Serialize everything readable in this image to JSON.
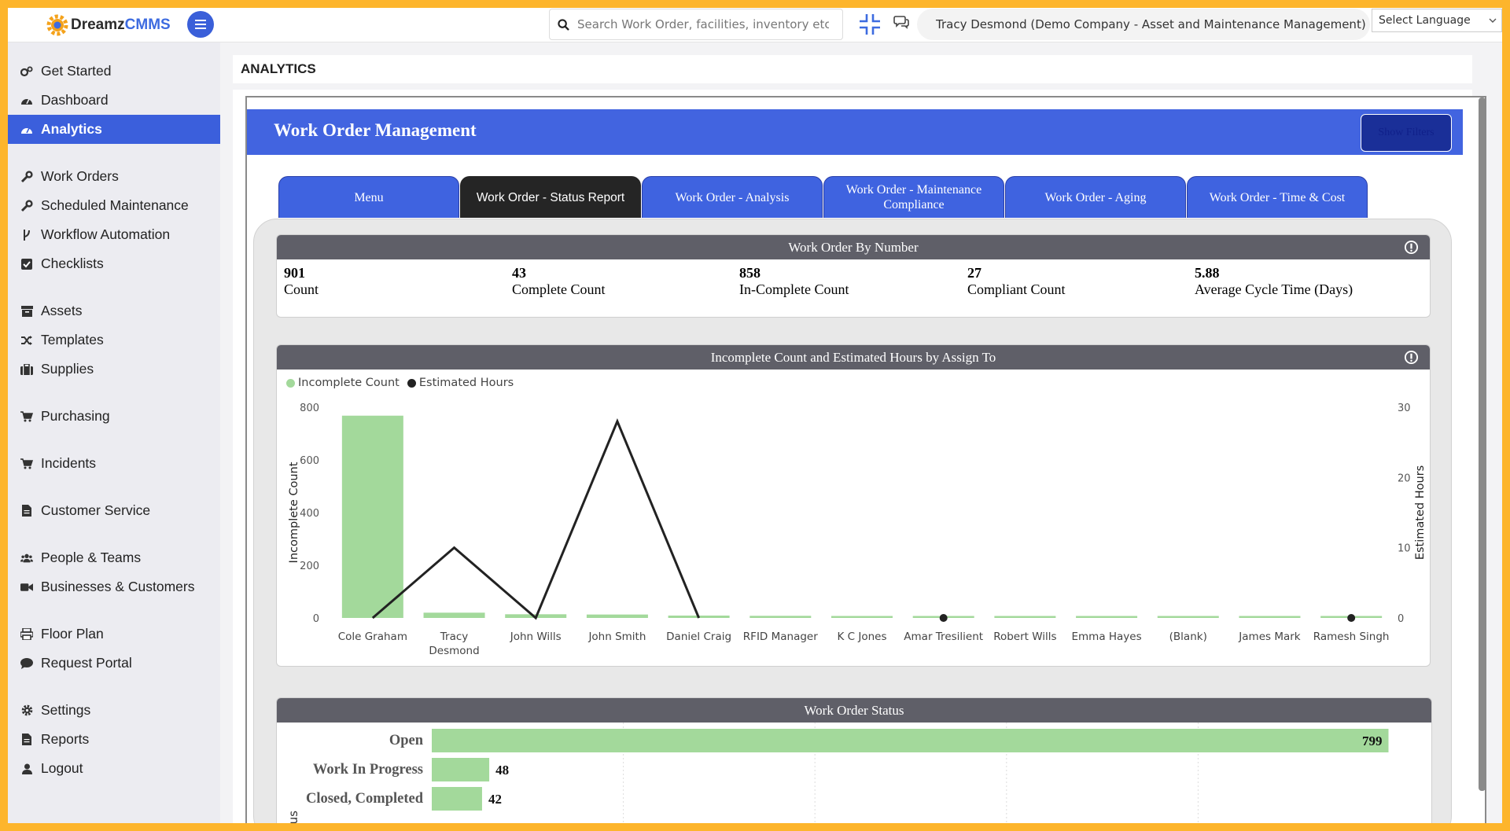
{
  "logo": {
    "part1": "Dreamz",
    "part2": "CMMS"
  },
  "search": {
    "placeholder": "Search Work Order, facilities, inventory etc..."
  },
  "user": {
    "label": "Tracy Desmond (Demo Company - Asset and Maintenance Management)"
  },
  "language": {
    "label": "Select Language"
  },
  "sidebar": {
    "items": [
      {
        "label": "Get Started",
        "icon": "gears-icon"
      },
      {
        "label": "Dashboard",
        "icon": "gauge-icon"
      },
      {
        "label": "Analytics",
        "icon": "gauge-icon"
      },
      {
        "label": "Work Orders",
        "icon": "wrench-icon"
      },
      {
        "label": "Scheduled Maintenance",
        "icon": "wrench-icon"
      },
      {
        "label": "Workflow Automation",
        "icon": "branch-icon"
      },
      {
        "label": "Checklists",
        "icon": "checkbox-icon"
      },
      {
        "label": "Assets",
        "icon": "archive-icon"
      },
      {
        "label": "Templates",
        "icon": "shuffle-icon"
      },
      {
        "label": "Supplies",
        "icon": "briefcase-icon"
      },
      {
        "label": "Purchasing",
        "icon": "cart-icon"
      },
      {
        "label": "Incidents",
        "icon": "cart-icon"
      },
      {
        "label": "Customer Service",
        "icon": "file-icon"
      },
      {
        "label": "People & Teams",
        "icon": "users-icon"
      },
      {
        "label": "Businesses & Customers",
        "icon": "video-icon"
      },
      {
        "label": "Floor Plan",
        "icon": "printer-icon"
      },
      {
        "label": "Request Portal",
        "icon": "comment-icon"
      },
      {
        "label": "Settings",
        "icon": "gear-icon"
      },
      {
        "label": "Reports",
        "icon": "file-icon"
      },
      {
        "label": "Logout",
        "icon": "user-icon"
      }
    ]
  },
  "page": {
    "title": "ANALYTICS"
  },
  "report": {
    "title": "Work Order Management",
    "filters_button": "Show Filters"
  },
  "tabs": [
    {
      "label": "Menu"
    },
    {
      "label": "Work Order - Status Report"
    },
    {
      "label": "Work Order - Analysis"
    },
    {
      "label": "Work Order - Maintenance Compliance"
    },
    {
      "label": "Work Order - Aging"
    },
    {
      "label": "Work Order - Time & Cost"
    }
  ],
  "kpi_card": {
    "title": "Work Order By Number",
    "items": [
      {
        "value": "901",
        "label": "Count"
      },
      {
        "value": "43",
        "label": "Complete Count"
      },
      {
        "value": "858",
        "label": "In-Complete Count"
      },
      {
        "value": "27",
        "label": "Compliant Count"
      },
      {
        "value": "5.88",
        "label": "Average Cycle Time (Days)"
      }
    ]
  },
  "colors": {
    "accent": "#3B5FDC",
    "bar_green": "#A3D99B",
    "border": "#FDB52C",
    "card_header": "#5F5F68"
  },
  "chart_data": [
    {
      "type": "bar",
      "title": "Incomplete Count and Estimated Hours by Assign To",
      "xlabel": "",
      "ylabel": "Incomplete Count",
      "y2label": "Estimated Hours",
      "ylim": [
        0,
        800
      ],
      "y2lim": [
        0,
        30
      ],
      "yticks": [
        0,
        200,
        400,
        600,
        800
      ],
      "y2ticks": [
        0,
        10,
        20,
        30
      ],
      "legend": "top-left",
      "categories": [
        "Cole Graham",
        "Tracy Desmond",
        "John Wills",
        "John Smith",
        "Daniel Craig",
        "RFID Manager",
        "K C Jones",
        "Amar Tresilient",
        "Robert Wills",
        "Emma Hayes",
        "(Blank)",
        "James Mark",
        "Ramesh Singh"
      ],
      "series": [
        {
          "name": "Incomplete Count",
          "kind": "bar",
          "axis": "left",
          "color": "#A3D99B",
          "values": [
            768,
            20,
            14,
            13,
            9,
            8,
            6,
            5,
            4,
            3,
            2,
            2,
            1
          ]
        },
        {
          "name": "Estimated Hours",
          "kind": "line",
          "axis": "right",
          "color": "#222222",
          "values": [
            0,
            10,
            0,
            28,
            0,
            null,
            null,
            0,
            null,
            null,
            null,
            null,
            0
          ]
        }
      ]
    },
    {
      "type": "bar",
      "orientation": "horizontal",
      "title": "Work Order Status",
      "ylabel": "Status",
      "categories": [
        "Open",
        "Work In Progress",
        "Closed, Completed"
      ],
      "values": [
        799,
        48,
        42
      ],
      "xlim": [
        0,
        800
      ],
      "color": "#A3D99B"
    }
  ]
}
